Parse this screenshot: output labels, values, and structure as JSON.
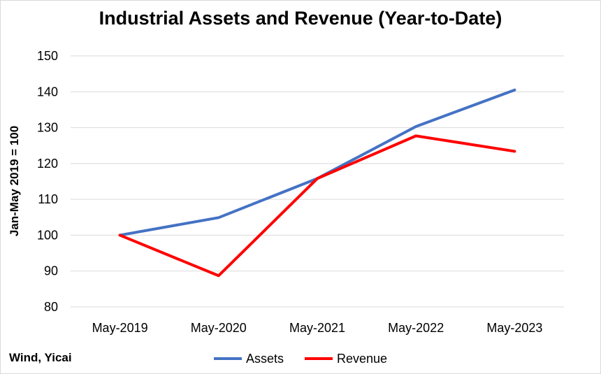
{
  "chart_data": {
    "type": "line",
    "title": "Industrial Assets and Revenue (Year-to-Date)",
    "xlabel": "",
    "ylabel": "Jan-May 2019 = 100",
    "categories": [
      "May-2019",
      "May-2020",
      "May-2021",
      "May-2022",
      "May-2023"
    ],
    "ylim": [
      80,
      150
    ],
    "yticks": [
      80,
      90,
      100,
      110,
      120,
      130,
      140,
      150
    ],
    "grid": true,
    "legend_position": "bottom",
    "series": [
      {
        "name": "Assets",
        "color": "#4472c4",
        "values": [
          100,
          104.9,
          115.8,
          130.3,
          140.5
        ]
      },
      {
        "name": "Revenue",
        "color": "#ff0000",
        "values": [
          100,
          88.7,
          115.8,
          127.7,
          123.4
        ]
      }
    ]
  },
  "source": "Wind, Yicai"
}
